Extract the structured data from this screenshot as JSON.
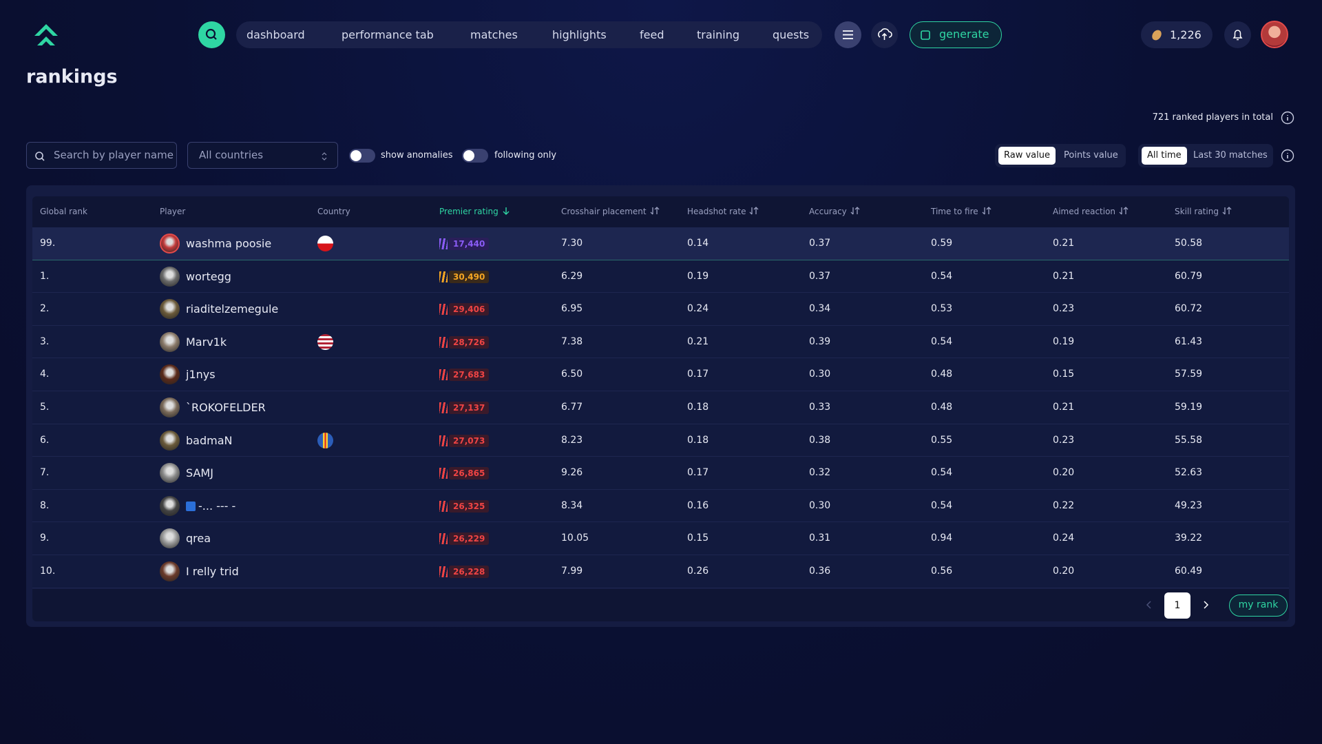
{
  "nav": {
    "items": [
      "dashboard",
      "performance tab",
      "matches",
      "highlights",
      "feed",
      "training",
      "quests"
    ],
    "generate": "generate",
    "coins": "1,226"
  },
  "header": {
    "title": "rankings",
    "total": "721 ranked players in total"
  },
  "filters": {
    "search_placeholder": "Search by player name",
    "country": "All countries",
    "toggles": [
      "show anomalies",
      "following only"
    ],
    "value_modes": [
      "Raw value",
      "Points value"
    ],
    "periods": [
      "All time",
      "Last 30 matches"
    ]
  },
  "table": {
    "headers": [
      "Global rank",
      "Player",
      "Country",
      "Premier rating",
      "Crosshair placement",
      "Headshot rate",
      "Accuracy",
      "Time to fire",
      "Aimed reaction",
      "Skill rating"
    ],
    "rows": [
      [
        "99.",
        "washma poosie",
        "17,440",
        "7.30",
        "0.14",
        "0.37",
        "0.59",
        "0.21",
        "50.58"
      ],
      [
        "1.",
        "wortegg",
        "30,490",
        "6.29",
        "0.19",
        "0.37",
        "0.54",
        "0.21",
        "60.79"
      ],
      [
        "2.",
        "riaditelzemegule",
        "29,406",
        "6.95",
        "0.24",
        "0.34",
        "0.53",
        "0.23",
        "60.72"
      ],
      [
        "3.",
        "Marv1k",
        "28,726",
        "7.38",
        "0.21",
        "0.39",
        "0.54",
        "0.19",
        "61.43"
      ],
      [
        "4.",
        "j1nys",
        "27,683",
        "6.50",
        "0.17",
        "0.30",
        "0.48",
        "0.15",
        "57.59"
      ],
      [
        "5.",
        "`ROKOFELDER",
        "27,137",
        "6.77",
        "0.18",
        "0.33",
        "0.48",
        "0.21",
        "59.19"
      ],
      [
        "6.",
        "badmaN",
        "27,073",
        "8.23",
        "0.18",
        "0.38",
        "0.55",
        "0.23",
        "55.58"
      ],
      [
        "7.",
        "SAMJ",
        "26,865",
        "9.26",
        "0.17",
        "0.32",
        "0.54",
        "0.20",
        "52.63"
      ],
      [
        "8.",
        "-... --- -",
        "26,325",
        "8.34",
        "0.16",
        "0.30",
        "0.54",
        "0.22",
        "49.23"
      ],
      [
        "9.",
        "qrea",
        "26,229",
        "10.05",
        "0.15",
        "0.31",
        "0.94",
        "0.24",
        "39.22"
      ],
      [
        "10.",
        "I relly trid",
        "26,228",
        "7.99",
        "0.26",
        "0.36",
        "0.56",
        "0.20",
        "60.49"
      ]
    ]
  },
  "pagination": {
    "page": "1",
    "my_rank": "my rank"
  }
}
